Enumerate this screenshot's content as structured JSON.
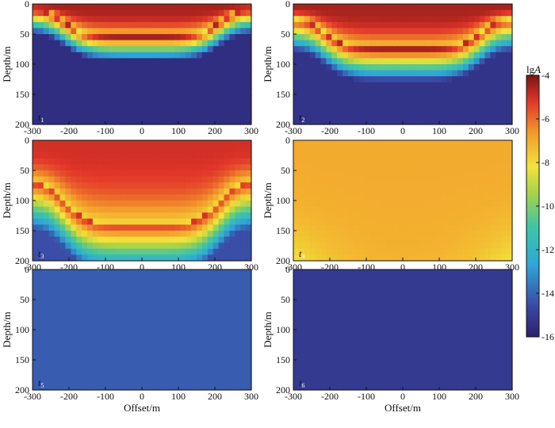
{
  "chart_data": {
    "type": "heatmap",
    "colorbar": {
      "label_prefix": "lg",
      "label_var": "A",
      "ticks": [
        "-4",
        "-6",
        "-8",
        "-10",
        "-12",
        "-14",
        "-16"
      ],
      "range": [
        -16,
        -4
      ],
      "colormap": "jet"
    },
    "x_ticks": [
      "-300",
      "-200",
      "-100",
      "0",
      "100",
      "200",
      "300"
    ],
    "y_ticks": [
      "0",
      "50",
      "100",
      "150",
      "200"
    ],
    "xlim": [
      -300,
      300
    ],
    "ylim": [
      200,
      0
    ],
    "xlabel": "Offset/m",
    "ylabel": "Depth/m",
    "panels": [
      {
        "label_var": "t",
        "label_sub": "1",
        "surface": -4.5,
        "front_depth": 55,
        "front_depth_edge": 10,
        "shape": 5.5,
        "decay": 8,
        "background": -15.5,
        "floor": -15.5
      },
      {
        "label_var": "t",
        "label_sub": "2",
        "surface": -4.5,
        "front_depth": 75,
        "front_depth_edge": 25,
        "shape": 5.5,
        "decay": 11,
        "background": -15.3,
        "floor": -15.3
      },
      {
        "label_var": "t",
        "label_sub": "3",
        "surface": -5.0,
        "front_depth": 140,
        "front_depth_edge": 70,
        "shape": 5.5,
        "decay": 18,
        "background": -13.8,
        "floor": -14.5
      },
      {
        "label_var": "t",
        "label_sub": "4",
        "surface": -7.0,
        "front_depth": 420,
        "front_depth_edge": 190,
        "shape": 2.0,
        "decay": 60,
        "background": -12.0,
        "floor": -12.5
      },
      {
        "label_var": "t",
        "label_sub": "5",
        "surface": -14.2,
        "front_depth": 900,
        "front_depth_edge": 900,
        "shape": 2.0,
        "decay": 300,
        "background": -14.35,
        "floor": -14.35
      },
      {
        "label_var": "t",
        "label_sub": "6",
        "surface": -15.1,
        "front_depth": 900,
        "front_depth_edge": 900,
        "shape": 2.0,
        "decay": 300,
        "background": -15.3,
        "floor": -15.3
      }
    ]
  }
}
